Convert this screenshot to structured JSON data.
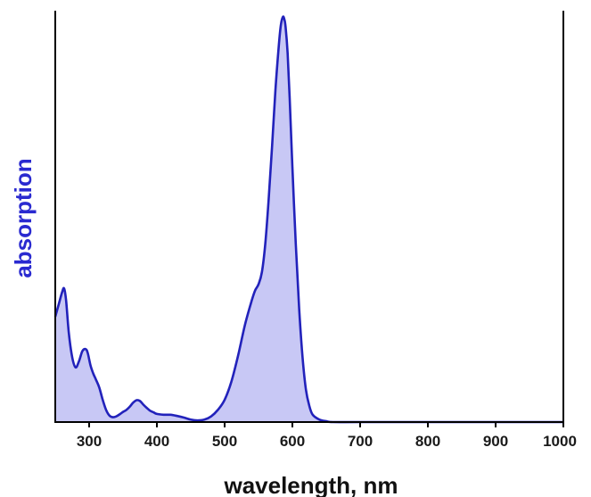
{
  "chart_data": {
    "type": "area",
    "xlabel": "wavelength, nm",
    "ylabel": "absorption",
    "xlim": [
      250,
      1000
    ],
    "ylim": [
      0,
      1
    ],
    "x_ticks": [
      300,
      400,
      500,
      600,
      700,
      800,
      900,
      1000
    ],
    "y_ticks": [],
    "grid": false,
    "legend": "none",
    "colors": {
      "line": "#2222bb",
      "fill": "#c8c8f5",
      "axis": "#000000",
      "ylabel": "#2a2ad0"
    },
    "series": [
      {
        "x": [
          250,
          255,
          260,
          263,
          266,
          270,
          275,
          280,
          285,
          290,
          295,
          298,
          302,
          306,
          310,
          315,
          320,
          325,
          330,
          335,
          340,
          345,
          350,
          355,
          360,
          365,
          370,
          375,
          380,
          385,
          390,
          395,
          400,
          410,
          420,
          430,
          440,
          450,
          460,
          470,
          480,
          490,
          500,
          510,
          520,
          530,
          540,
          545,
          550,
          555,
          560,
          565,
          570,
          575,
          580,
          583,
          586,
          588,
          590,
          593,
          596,
          600,
          605,
          610,
          615,
          620,
          625,
          630,
          640,
          650,
          660,
          700,
          800,
          900,
          1000
        ],
        "values": [
          0.26,
          0.29,
          0.32,
          0.33,
          0.3,
          0.22,
          0.16,
          0.135,
          0.15,
          0.175,
          0.18,
          0.17,
          0.14,
          0.12,
          0.105,
          0.085,
          0.055,
          0.03,
          0.016,
          0.012,
          0.014,
          0.019,
          0.025,
          0.03,
          0.038,
          0.048,
          0.054,
          0.052,
          0.043,
          0.035,
          0.028,
          0.024,
          0.02,
          0.018,
          0.018,
          0.015,
          0.011,
          0.006,
          0.004,
          0.006,
          0.014,
          0.03,
          0.055,
          0.1,
          0.165,
          0.24,
          0.3,
          0.325,
          0.34,
          0.37,
          0.44,
          0.55,
          0.68,
          0.82,
          0.93,
          0.98,
          1.0,
          0.995,
          0.975,
          0.91,
          0.8,
          0.63,
          0.44,
          0.28,
          0.16,
          0.08,
          0.04,
          0.018,
          0.006,
          0.002,
          0.0,
          0.0,
          0.0,
          0.0,
          0.0
        ]
      }
    ]
  }
}
